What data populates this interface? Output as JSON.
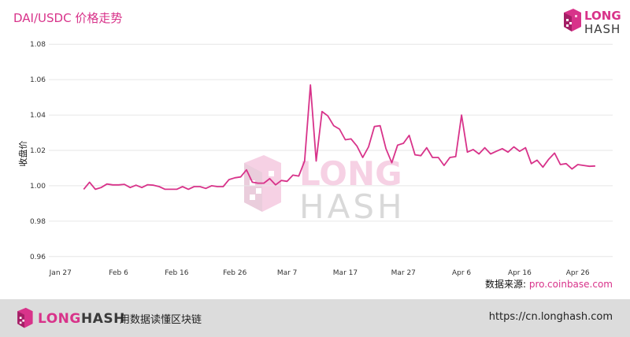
{
  "header": {
    "title": "DAI/USDC 价格走势"
  },
  "logo": {
    "top_word": "LONG",
    "bottom_word": "HASH",
    "color_pink": "#d8338a",
    "color_dark": "#3a3a3a"
  },
  "watermark": {
    "top_word": "LONG",
    "bottom_word": "HASH"
  },
  "source": {
    "label": "数据来源:",
    "url": "pro.coinbase.com"
  },
  "footer": {
    "brand_long": "LONG",
    "brand_hash": "HASH",
    "slogan": "用数据读懂区块链",
    "url": "https://cn.longhash.com"
  },
  "chart_data": {
    "type": "line",
    "title": "",
    "xlabel": "",
    "ylabel": "收盘价",
    "ylim": [
      0.955,
      1.085
    ],
    "yticks": [
      0.96,
      0.98,
      1.0,
      1.02,
      1.04,
      1.06,
      1.08
    ],
    "ytick_labels": [
      "0.96",
      "0.98",
      "1.00",
      "1.02",
      "1.04",
      "1.06",
      "1.08"
    ],
    "xlim": [
      "2019-01-25",
      "2019-05-02"
    ],
    "xticks": [
      "2019-01-27",
      "2019-02-06",
      "2019-02-16",
      "2019-02-26",
      "2019-03-07",
      "2019-03-17",
      "2019-03-27",
      "2019-04-06",
      "2019-04-16",
      "2019-04-26"
    ],
    "xtick_labels": [
      "Jan 27",
      "Feb 6",
      "Feb 16",
      "Feb 26",
      "Mar 7",
      "Mar 17",
      "Mar 27",
      "Apr 6",
      "Apr 16",
      "Apr 26"
    ],
    "grid": "horizontal",
    "line_color": "#d8338a",
    "series": [
      {
        "name": "",
        "x": [
          "2019-01-31",
          "2019-02-01",
          "2019-02-02",
          "2019-02-03",
          "2019-02-04",
          "2019-02-05",
          "2019-02-06",
          "2019-02-07",
          "2019-02-08",
          "2019-02-09",
          "2019-02-10",
          "2019-02-11",
          "2019-02-12",
          "2019-02-13",
          "2019-02-14",
          "2019-02-15",
          "2019-02-16",
          "2019-02-17",
          "2019-02-18",
          "2019-02-19",
          "2019-02-20",
          "2019-02-21",
          "2019-02-22",
          "2019-02-23",
          "2019-02-24",
          "2019-02-25",
          "2019-02-26",
          "2019-02-27",
          "2019-02-28",
          "2019-03-01",
          "2019-03-02",
          "2019-03-03",
          "2019-03-04",
          "2019-03-05",
          "2019-03-06",
          "2019-03-07",
          "2019-03-08",
          "2019-03-09",
          "2019-03-10",
          "2019-03-11",
          "2019-03-12",
          "2019-03-13",
          "2019-03-14",
          "2019-03-15",
          "2019-03-16",
          "2019-03-17",
          "2019-03-18",
          "2019-03-19",
          "2019-03-20",
          "2019-03-21",
          "2019-03-22",
          "2019-03-23",
          "2019-03-24",
          "2019-03-25",
          "2019-03-26",
          "2019-03-27",
          "2019-03-28",
          "2019-03-29",
          "2019-03-30",
          "2019-03-31",
          "2019-04-01",
          "2019-04-02",
          "2019-04-03",
          "2019-04-04",
          "2019-04-05",
          "2019-04-06",
          "2019-04-07",
          "2019-04-08",
          "2019-04-09",
          "2019-04-10",
          "2019-04-11",
          "2019-04-12",
          "2019-04-13",
          "2019-04-14",
          "2019-04-15",
          "2019-04-16",
          "2019-04-17",
          "2019-04-18",
          "2019-04-19",
          "2019-04-20",
          "2019-04-21",
          "2019-04-22",
          "2019-04-23",
          "2019-04-24",
          "2019-04-25",
          "2019-04-26",
          "2019-04-27",
          "2019-04-28",
          "2019-04-29"
        ],
        "values": [
          0.998,
          1.002,
          0.998,
          0.999,
          1.001,
          1.0005,
          1.0005,
          1.0008,
          0.999,
          1.0003,
          0.999,
          1.0006,
          1.0003,
          0.9995,
          0.998,
          0.998,
          0.998,
          0.9995,
          0.998,
          0.9995,
          0.9995,
          0.9985,
          1.0,
          0.9995,
          0.9995,
          1.0035,
          1.0045,
          1.005,
          1.009,
          1.002,
          1.0015,
          1.0015,
          1.004,
          1.0005,
          1.003,
          1.0025,
          1.006,
          1.0055,
          1.014,
          1.057,
          1.014,
          1.042,
          1.0395,
          1.034,
          1.032,
          1.026,
          1.0265,
          1.0225,
          1.016,
          1.022,
          1.0335,
          1.034,
          1.021,
          1.013,
          1.023,
          1.024,
          1.0285,
          1.0175,
          1.017,
          1.0215,
          1.016,
          1.016,
          1.0115,
          1.016,
          1.0165,
          1.04,
          1.019,
          1.0205,
          1.018,
          1.0215,
          1.018,
          1.0195,
          1.021,
          1.019,
          1.022,
          1.0195,
          1.0215,
          1.0125,
          1.0145,
          1.0105,
          1.015,
          1.0185,
          1.012,
          1.0125,
          1.0095,
          1.012,
          1.0115,
          1.011,
          1.0112
        ]
      }
    ]
  }
}
